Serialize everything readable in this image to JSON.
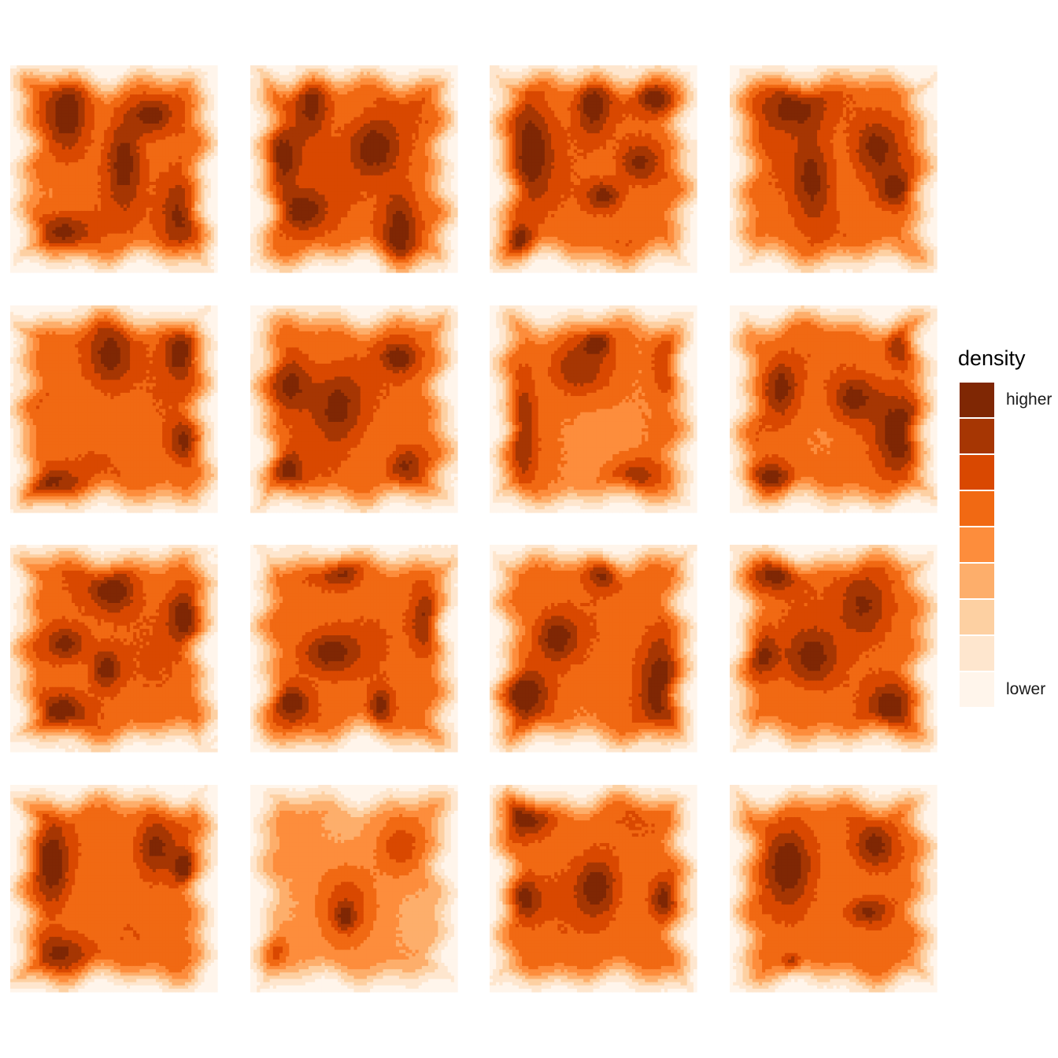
{
  "chart_data": {
    "type": "heatmap",
    "subtype": "filled-density-contour",
    "facets": {
      "rows": 4,
      "cols": 4,
      "count": 16,
      "strip_labels": "none"
    },
    "axes": {
      "shown": false,
      "grid": false
    },
    "levels": 9,
    "palette": [
      "#fff5eb",
      "#fee6ce",
      "#fdd0a2",
      "#fdae6b",
      "#fd8d3c",
      "#f16913",
      "#d94801",
      "#a63603",
      "#7f2704"
    ],
    "legend": {
      "title": "density",
      "high_label": "higher",
      "low_label": "lower",
      "placement": "right",
      "colors_top_to_bottom": [
        "#7f2704",
        "#a63603",
        "#d94801",
        "#f16913",
        "#fd8d3c",
        "#fdae6b",
        "#fdd0a2",
        "#fee6ce",
        "#fff5eb"
      ]
    },
    "panels": [
      {
        "hotspots": [
          [
            0.28,
            0.22,
            0.07,
            0.14
          ],
          [
            0.68,
            0.24,
            0.07,
            0.06
          ],
          [
            0.82,
            0.72,
            0.07,
            0.14
          ],
          [
            0.25,
            0.8,
            0.1,
            0.06
          ],
          [
            0.55,
            0.45,
            0.06,
            0.16
          ]
        ]
      },
      {
        "hotspots": [
          [
            0.3,
            0.18,
            0.06,
            0.12
          ],
          [
            0.16,
            0.45,
            0.06,
            0.1
          ],
          [
            0.72,
            0.78,
            0.06,
            0.14
          ],
          [
            0.6,
            0.4,
            0.09,
            0.1
          ],
          [
            0.25,
            0.7,
            0.08,
            0.07
          ]
        ]
      },
      {
        "hotspots": [
          [
            0.72,
            0.47,
            0.07,
            0.07
          ],
          [
            0.55,
            0.63,
            0.06,
            0.05
          ],
          [
            0.5,
            0.18,
            0.06,
            0.12
          ],
          [
            0.8,
            0.16,
            0.06,
            0.05
          ],
          [
            0.14,
            0.84,
            0.05,
            0.05
          ],
          [
            0.2,
            0.4,
            0.07,
            0.18
          ]
        ]
      },
      {
        "hotspots": [
          [
            0.3,
            0.2,
            0.12,
            0.09
          ],
          [
            0.4,
            0.55,
            0.07,
            0.15
          ],
          [
            0.8,
            0.6,
            0.06,
            0.06
          ],
          [
            0.7,
            0.4,
            0.08,
            0.1
          ]
        ]
      },
      {
        "hotspots": [
          [
            0.48,
            0.25,
            0.08,
            0.11
          ],
          [
            0.85,
            0.66,
            0.06,
            0.07
          ],
          [
            0.18,
            0.86,
            0.1,
            0.06
          ],
          [
            0.82,
            0.22,
            0.05,
            0.09
          ]
        ]
      },
      {
        "hotspots": [
          [
            0.42,
            0.48,
            0.09,
            0.13
          ],
          [
            0.72,
            0.25,
            0.06,
            0.05
          ],
          [
            0.2,
            0.38,
            0.07,
            0.1
          ],
          [
            0.75,
            0.78,
            0.06,
            0.07
          ],
          [
            0.18,
            0.8,
            0.05,
            0.07
          ]
        ]
      },
      {
        "hotspots": [
          [
            0.16,
            0.58,
            0.05,
            0.24
          ],
          [
            0.52,
            0.18,
            0.05,
            0.04
          ],
          [
            0.7,
            0.82,
            0.09,
            0.06
          ],
          [
            0.85,
            0.28,
            0.05,
            0.11
          ],
          [
            0.42,
            0.3,
            0.11,
            0.1
          ]
        ]
      },
      {
        "hotspots": [
          [
            0.82,
            0.62,
            0.08,
            0.14
          ],
          [
            0.2,
            0.83,
            0.07,
            0.05
          ],
          [
            0.25,
            0.4,
            0.06,
            0.1
          ],
          [
            0.82,
            0.2,
            0.05,
            0.06
          ],
          [
            0.6,
            0.45,
            0.08,
            0.08
          ]
        ]
      },
      {
        "hotspots": [
          [
            0.84,
            0.35,
            0.06,
            0.09
          ],
          [
            0.46,
            0.6,
            0.05,
            0.07
          ],
          [
            0.27,
            0.48,
            0.07,
            0.06
          ],
          [
            0.5,
            0.22,
            0.08,
            0.08
          ],
          [
            0.25,
            0.8,
            0.08,
            0.06
          ]
        ]
      },
      {
        "hotspots": [
          [
            0.38,
            0.52,
            0.1,
            0.07
          ],
          [
            0.2,
            0.76,
            0.06,
            0.06
          ],
          [
            0.63,
            0.78,
            0.04,
            0.06
          ],
          [
            0.43,
            0.13,
            0.07,
            0.05
          ],
          [
            0.85,
            0.38,
            0.05,
            0.1
          ]
        ]
      },
      {
        "hotspots": [
          [
            0.18,
            0.72,
            0.08,
            0.09
          ],
          [
            0.82,
            0.64,
            0.07,
            0.18
          ],
          [
            0.55,
            0.13,
            0.06,
            0.06
          ],
          [
            0.32,
            0.45,
            0.07,
            0.08
          ]
        ]
      },
      {
        "hotspots": [
          [
            0.65,
            0.3,
            0.09,
            0.12
          ],
          [
            0.22,
            0.15,
            0.08,
            0.05
          ],
          [
            0.16,
            0.53,
            0.05,
            0.07
          ],
          [
            0.78,
            0.78,
            0.07,
            0.08
          ],
          [
            0.4,
            0.55,
            0.09,
            0.1
          ]
        ]
      },
      {
        "hotspots": [
          [
            0.24,
            0.81,
            0.1,
            0.07
          ],
          [
            0.84,
            0.4,
            0.04,
            0.06
          ],
          [
            0.2,
            0.4,
            0.06,
            0.15
          ],
          [
            0.7,
            0.3,
            0.07,
            0.1
          ]
        ]
      },
      {
        "hotspots": [
          [
            0.46,
            0.58,
            0.1,
            0.14
          ],
          [
            0.46,
            0.64,
            0.03,
            0.04
          ],
          [
            0.12,
            0.8,
            0.05,
            0.08
          ],
          [
            0.72,
            0.3,
            0.08,
            0.1
          ]
        ]
      },
      {
        "hotspots": [
          [
            0.18,
            0.16,
            0.09,
            0.06
          ],
          [
            0.52,
            0.5,
            0.07,
            0.1
          ],
          [
            0.84,
            0.55,
            0.05,
            0.07
          ],
          [
            0.16,
            0.55,
            0.06,
            0.07
          ]
        ]
      },
      {
        "hotspots": [
          [
            0.28,
            0.38,
            0.08,
            0.14
          ],
          [
            0.67,
            0.61,
            0.07,
            0.05
          ],
          [
            0.3,
            0.86,
            0.03,
            0.03
          ],
          [
            0.7,
            0.3,
            0.07,
            0.08
          ]
        ]
      }
    ]
  }
}
